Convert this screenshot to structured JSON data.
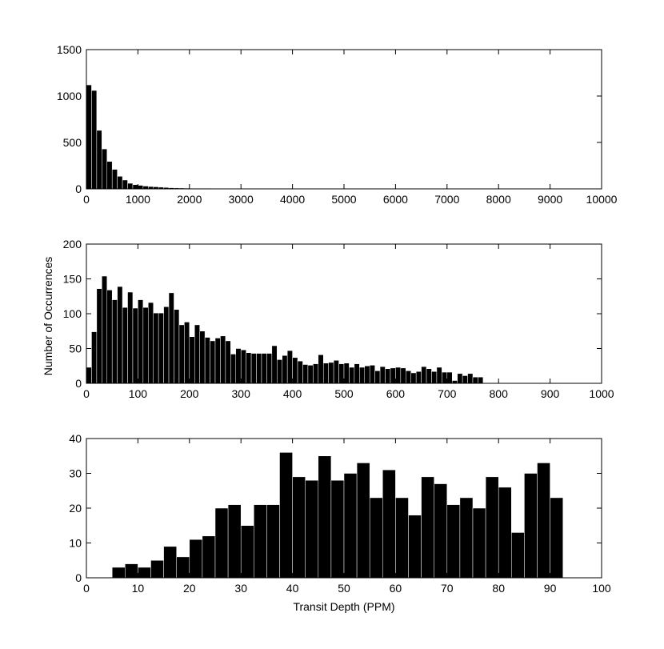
{
  "figure": {
    "ylabel": "Number of Occurrences",
    "xlabel": "Transit Depth (PPM)",
    "bar_color": "#000000",
    "axis_color": "#000000",
    "background": "#ffffff"
  },
  "chart_data": [
    {
      "type": "bar",
      "panel": "top",
      "bin_width": 100,
      "bin_start": 0,
      "xlim": [
        0,
        10000
      ],
      "ylim": [
        0,
        1500
      ],
      "xticks": [
        0,
        1000,
        2000,
        3000,
        4000,
        5000,
        6000,
        7000,
        8000,
        9000,
        10000
      ],
      "yticks": [
        0,
        500,
        1000,
        1500
      ],
      "values": [
        1120,
        1060,
        630,
        430,
        295,
        210,
        135,
        95,
        60,
        45,
        38,
        30,
        25,
        22,
        18,
        15,
        12,
        10,
        9,
        8,
        7,
        6,
        5,
        5,
        4,
        4,
        3,
        3,
        3,
        3,
        2,
        2,
        2,
        2,
        2,
        2,
        2,
        2,
        2,
        2,
        2,
        2,
        2,
        2,
        2,
        2,
        2,
        2,
        1,
        1,
        1,
        1,
        1,
        1,
        1,
        1,
        1,
        1,
        1,
        1,
        1,
        1,
        1,
        1,
        1,
        1,
        1,
        1,
        1,
        1,
        1,
        1,
        1,
        1,
        1,
        1,
        1,
        1,
        1,
        1,
        1,
        1,
        1,
        1,
        1,
        1,
        1,
        1,
        1,
        1,
        1,
        1,
        1,
        1,
        1,
        1,
        1,
        1,
        1,
        1
      ]
    },
    {
      "type": "bar",
      "panel": "middle",
      "bin_width": 10,
      "bin_start": 0,
      "xlim": [
        0,
        1000
      ],
      "ylim": [
        0,
        200
      ],
      "xticks": [
        0,
        100,
        200,
        300,
        400,
        500,
        600,
        700,
        800,
        900,
        1000
      ],
      "yticks": [
        0,
        50,
        100,
        150,
        200
      ],
      "values": [
        23,
        74,
        136,
        154,
        134,
        120,
        139,
        109,
        131,
        108,
        120,
        109,
        116,
        101,
        101,
        110,
        130,
        106,
        84,
        88,
        67,
        84,
        75,
        66,
        61,
        65,
        68,
        61,
        42,
        50,
        48,
        44,
        43,
        43,
        43,
        43,
        54,
        34,
        40,
        47,
        37,
        32,
        27,
        26,
        28,
        41,
        29,
        30,
        33,
        28,
        29,
        23,
        28,
        23,
        25,
        26,
        18,
        24,
        21,
        22,
        23,
        22,
        18,
        15,
        17,
        24,
        21,
        17,
        23,
        16,
        16,
        4,
        14,
        11,
        14,
        9,
        9
      ]
    },
    {
      "type": "bar",
      "panel": "bottom",
      "bin_width": 2.5,
      "bin_start": 0,
      "xlim": [
        0,
        100
      ],
      "ylim": [
        0,
        40
      ],
      "xticks": [
        0,
        10,
        20,
        30,
        40,
        50,
        60,
        70,
        80,
        90,
        100
      ],
      "yticks": [
        0,
        10,
        20,
        30,
        40
      ],
      "values": [
        0,
        0,
        3,
        4,
        3,
        5,
        9,
        6,
        11,
        12,
        20,
        21,
        15,
        21,
        21,
        36,
        29,
        28,
        35,
        28,
        30,
        33,
        23,
        31,
        23,
        18,
        29,
        27,
        21,
        23,
        20,
        29,
        26,
        13,
        30,
        33,
        23
      ]
    }
  ]
}
